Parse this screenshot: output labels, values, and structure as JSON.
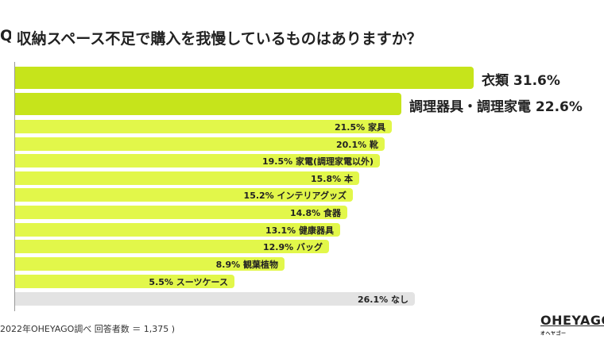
{
  "chart_data": {
    "type": "bar",
    "orientation": "horizontal",
    "title": "Q 収納スペース不足で購入を我慢しているものはありますか？",
    "categories": [
      "衣類",
      "調理器具・調理家電",
      "家具",
      "靴",
      "家電(調理家電以外)",
      "本",
      "インテリアグッズ",
      "食器",
      "健康器具",
      "バッグ",
      "観葉植物",
      "スーツケース",
      "なし"
    ],
    "values": [
      31.6,
      22.6,
      21.5,
      20.1,
      19.5,
      15.8,
      15.2,
      14.8,
      13.1,
      12.9,
      8.9,
      5.5,
      26.1
    ],
    "value_labels": [
      "31.6%",
      "22.6%",
      "21.5%",
      "20.1%",
      "19.5%",
      "15.8%",
      "15.2%",
      "14.8%",
      "13.1%",
      "12.9%",
      "8.9%",
      "5.5%",
      "26.1%"
    ],
    "unit": "%",
    "colors": {
      "highlight": "#c6e41b",
      "normal": "#e2f74a",
      "none": "#e3e3e3"
    }
  },
  "title": {
    "q": "Q",
    "text": "収納スペース不足で購入を我慢しているものはありますか？"
  },
  "footnote": "2022年OHEYAGO調べ 回答者数 ＝ 1,375 )",
  "logo": {
    "main": "OHEYAGO",
    "sub": "オヘヤゴー"
  }
}
